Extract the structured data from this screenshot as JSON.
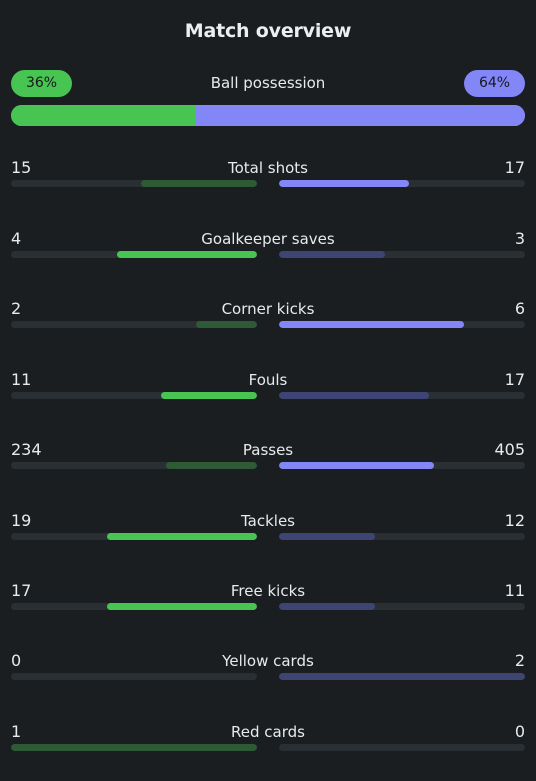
{
  "title": "Match overview",
  "colors": {
    "background": "#1a1e21",
    "home_strong": "#47c452",
    "home_dim": "#2e5a36",
    "away_strong": "#8386f7",
    "away_dim": "#3e4574",
    "track": "#2a2f33"
  },
  "possession": {
    "label": "Ball possession",
    "home": "36%",
    "away": "64%",
    "home_value": 36,
    "away_value": 64
  },
  "stats": [
    {
      "label": "Total shots",
      "home": "15",
      "away": "17",
      "home_fraction": 0.47,
      "away_fraction": 0.53
    },
    {
      "label": "Goalkeeper saves",
      "home": "4",
      "away": "3",
      "home_fraction": 0.57,
      "away_fraction": 0.43
    },
    {
      "label": "Corner kicks",
      "home": "2",
      "away": "6",
      "home_fraction": 0.25,
      "away_fraction": 0.75
    },
    {
      "label": "Fouls",
      "home": "11",
      "away": "17",
      "home_fraction": 0.39,
      "away_fraction": 0.61
    },
    {
      "label": "Passes",
      "home": "234",
      "away": "405",
      "home_fraction": 0.37,
      "away_fraction": 0.63
    },
    {
      "label": "Tackles",
      "home": "19",
      "away": "12",
      "home_fraction": 0.61,
      "away_fraction": 0.39
    },
    {
      "label": "Free kicks",
      "home": "17",
      "away": "11",
      "home_fraction": 0.61,
      "away_fraction": 0.39
    },
    {
      "label": "Yellow cards",
      "home": "0",
      "away": "2",
      "home_fraction": 0,
      "away_fraction": 1
    },
    {
      "label": "Red cards",
      "home": "1",
      "away": "0",
      "home_fraction": 1,
      "away_fraction": 0
    }
  ]
}
